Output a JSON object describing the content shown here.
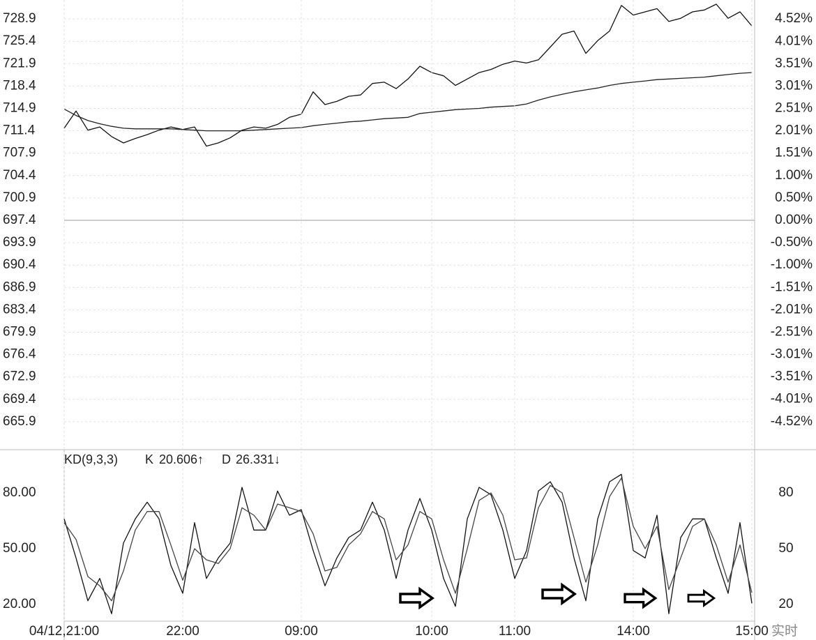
{
  "chart_data": [
    {
      "type": "line",
      "ylim": [
        662.4,
        732.4
      ],
      "yticks": [
        728.9,
        725.4,
        721.9,
        718.4,
        714.9,
        711.4,
        707.9,
        704.4,
        700.9,
        697.4,
        693.9,
        690.4,
        686.9,
        683.4,
        679.9,
        676.4,
        672.9,
        669.4,
        665.9
      ],
      "y2lim": [
        -5.02,
        5.02
      ],
      "y2ticks": [
        {
          "value": 4.52,
          "label": "4.52%"
        },
        {
          "value": 4.01,
          "label": "4.01%"
        },
        {
          "value": 3.51,
          "label": "3.51%"
        },
        {
          "value": 3.01,
          "label": "3.01%"
        },
        {
          "value": 2.51,
          "label": "2.51%"
        },
        {
          "value": 2.01,
          "label": "2.01%"
        },
        {
          "value": 1.51,
          "label": "1.51%"
        },
        {
          "value": 1.0,
          "label": "1.00%"
        },
        {
          "value": 0.5,
          "label": "0.50%"
        },
        {
          "value": 0.0,
          "label": "0.00%"
        },
        {
          "value": -0.5,
          "label": "-0.50%"
        },
        {
          "value": -1.0,
          "label": "-1.00%"
        },
        {
          "value": -1.51,
          "label": "-1.51%"
        },
        {
          "value": -2.01,
          "label": "-2.01%"
        },
        {
          "value": -2.51,
          "label": "-2.51%"
        },
        {
          "value": -3.01,
          "label": "-3.01%"
        },
        {
          "value": -3.51,
          "label": "-3.51%"
        },
        {
          "value": -4.01,
          "label": "-4.01%"
        },
        {
          "value": -4.52,
          "label": "-4.52%"
        }
      ],
      "grid": true,
      "zero_line": 697.4,
      "series": [
        {
          "color": "#111111",
          "values": [
            711.8,
            714.5,
            711.5,
            712.0,
            710.5,
            709.5,
            710.2,
            710.8,
            711.5,
            712.0,
            711.6,
            712.0,
            709.0,
            709.5,
            710.3,
            711.5,
            712.0,
            711.8,
            712.4,
            713.5,
            714.0,
            717.5,
            715.5,
            716.0,
            716.8,
            717.0,
            718.8,
            719.0,
            718.0,
            719.5,
            721.5,
            720.5,
            720.0,
            718.5,
            719.5,
            720.5,
            721.0,
            721.8,
            722.3,
            722.0,
            722.5,
            724.5,
            726.5,
            727.0,
            723.5,
            725.5,
            727.0,
            731.0,
            729.5,
            730.0,
            730.5,
            728.5,
            729.0,
            730.0,
            730.3,
            731.2,
            729.0,
            730.0,
            727.8
          ]
        },
        {
          "color": "#222222",
          "values": [
            714.8,
            713.8,
            713.0,
            712.5,
            712.1,
            711.8,
            711.7,
            711.7,
            711.7,
            711.7,
            711.6,
            711.5,
            711.4,
            711.4,
            711.4,
            711.4,
            711.5,
            711.6,
            711.7,
            711.8,
            711.9,
            712.2,
            712.4,
            712.6,
            712.8,
            712.9,
            713.1,
            713.3,
            713.4,
            713.5,
            714.1,
            714.3,
            714.5,
            714.7,
            714.8,
            714.9,
            715.1,
            715.2,
            715.3,
            715.6,
            716.2,
            716.7,
            717.1,
            717.5,
            717.8,
            718.1,
            718.5,
            718.8,
            719.0,
            719.2,
            719.4,
            719.5,
            719.6,
            719.7,
            719.8,
            720.0,
            720.2,
            720.4,
            720.5
          ]
        }
      ]
    },
    {
      "type": "line",
      "title": "KD(9,3,3)",
      "categories": [
        "04/12,21:00",
        null,
        null,
        null,
        null,
        null,
        null,
        null,
        null,
        null,
        "22:00",
        null,
        null,
        null,
        null,
        null,
        null,
        null,
        null,
        null,
        "09:00",
        null,
        null,
        null,
        null,
        null,
        null,
        null,
        null,
        null,
        null,
        "10:00",
        null,
        null,
        null,
        null,
        null,
        null,
        "11:00",
        null,
        null,
        null,
        null,
        null,
        null,
        null,
        null,
        null,
        "14:00",
        null,
        null,
        null,
        null,
        null,
        null,
        null,
        null,
        null,
        "15:00"
      ],
      "corner_label": "实时",
      "x_grid": true,
      "ylim": [
        11,
        103
      ],
      "yticks": [
        {
          "value": 80,
          "label": "80.00"
        },
        {
          "value": 50,
          "label": "50.00"
        },
        {
          "value": 20,
          "label": "20.00"
        }
      ],
      "y2lim": [
        11,
        103
      ],
      "y2ticks": [
        80,
        50,
        20
      ],
      "series": [
        {
          "name": "K",
          "current_label": "20.606↑",
          "color": "#111111",
          "values": [
            66,
            45,
            22,
            34,
            15,
            53,
            66,
            75,
            66,
            41,
            26,
            64,
            34,
            45,
            53,
            83,
            60,
            60,
            81,
            68,
            71,
            49,
            30,
            45,
            56,
            60,
            75,
            60,
            34,
            60,
            77,
            60,
            34,
            19,
            66,
            83,
            79,
            60,
            34,
            49,
            81,
            86,
            75,
            45,
            22,
            66,
            86,
            90,
            49,
            45,
            68,
            15,
            56,
            66,
            66,
            45,
            26,
            64,
            20.606
          ]
        },
        {
          "name": "D",
          "current_label": "26.331↓",
          "color": "#444444",
          "values": [
            64,
            55,
            35,
            30,
            22,
            38,
            60,
            70,
            70,
            52,
            33,
            50,
            44,
            42,
            50,
            72,
            68,
            60,
            74,
            72,
            70,
            58,
            38,
            40,
            52,
            58,
            70,
            66,
            44,
            52,
            70,
            66,
            44,
            26,
            50,
            76,
            80,
            68,
            44,
            45,
            72,
            84,
            80,
            56,
            32,
            52,
            78,
            88,
            62,
            50,
            62,
            28,
            45,
            62,
            66,
            52,
            32,
            52,
            26.331
          ]
        }
      ]
    }
  ]
}
